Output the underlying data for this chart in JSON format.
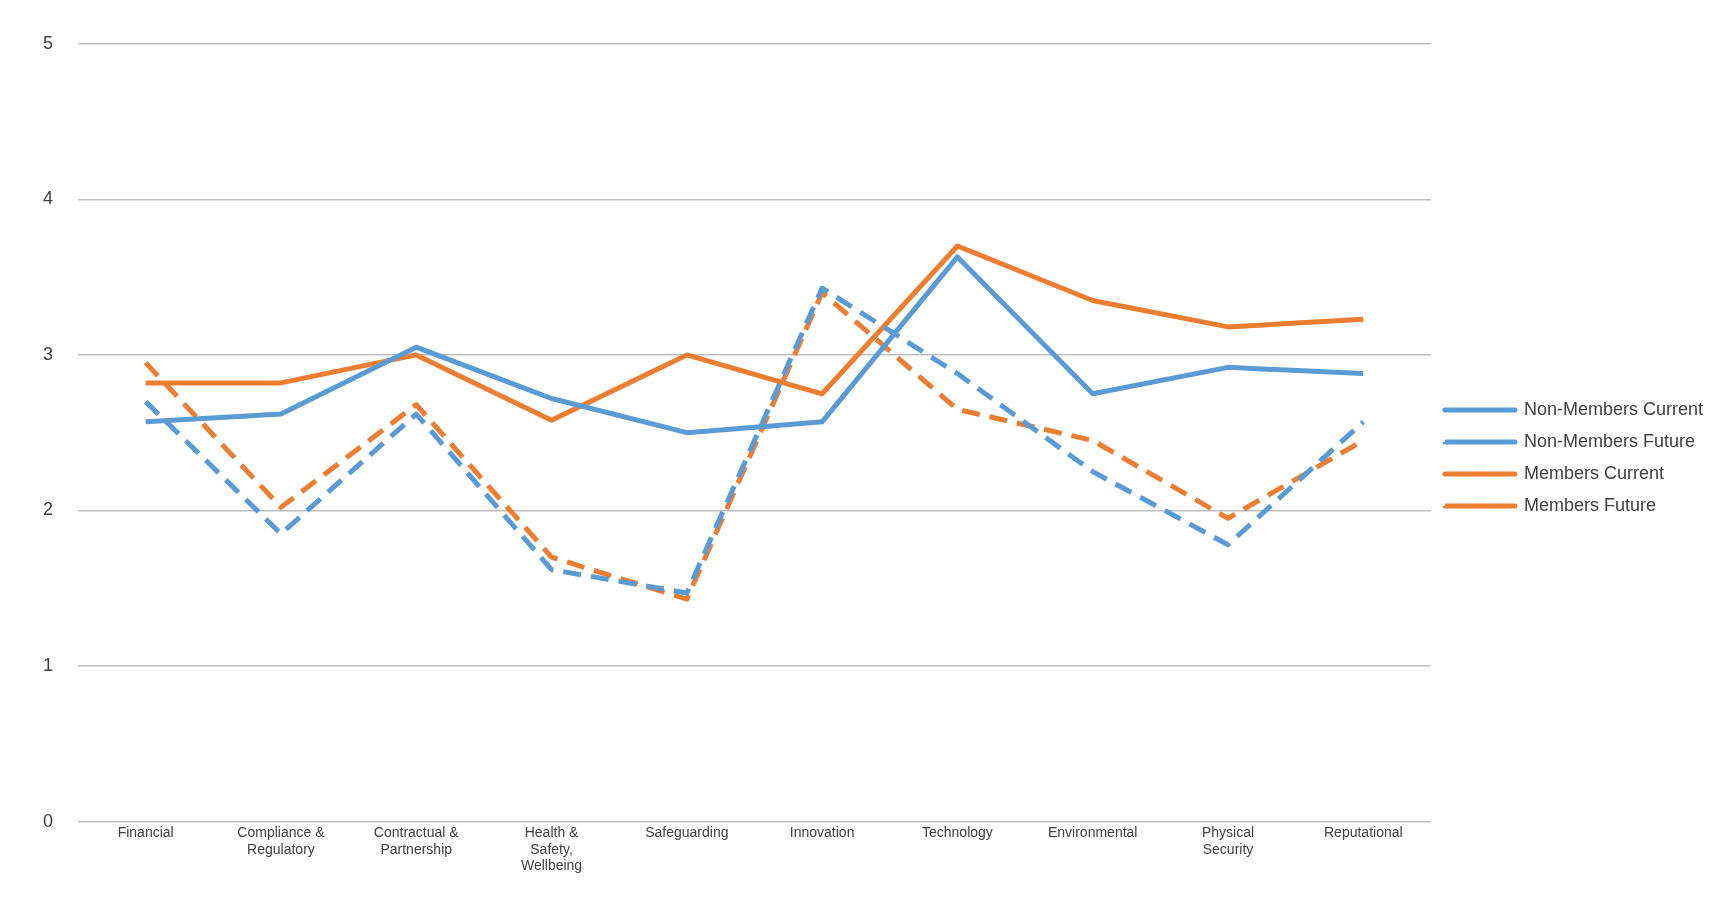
{
  "chart_data": {
    "type": "line",
    "categories": [
      "Financial",
      "Compliance & Regulatory",
      "Contractual & Partnership",
      "Health & Safety, Wellbeing",
      "Safeguarding",
      "Innovation",
      "Technology",
      "Environmental",
      "Physical Security",
      "Reputational"
    ],
    "series": [
      {
        "name": "Non-Members Current",
        "color": "#5b9bd5",
        "line_style": "solid",
        "values": [
          2.57,
          2.62,
          3.05,
          2.72,
          2.5,
          2.57,
          3.63,
          2.75,
          2.92,
          2.88
        ]
      },
      {
        "name": "Non-Members Future",
        "color": "#5b9bd5",
        "line_style": "dashed",
        "values": [
          2.7,
          1.85,
          2.62,
          1.62,
          1.47,
          3.43,
          2.88,
          2.25,
          1.78,
          2.57
        ]
      },
      {
        "name": "Members Current",
        "color": "#ed7d31",
        "line_style": "solid",
        "values": [
          2.82,
          2.82,
          3.0,
          2.58,
          3.0,
          2.75,
          3.7,
          3.35,
          3.18,
          3.23
        ]
      },
      {
        "name": "Members Future",
        "color": "#ed7d31",
        "line_style": "dashed",
        "values": [
          2.95,
          2.02,
          2.68,
          1.7,
          1.43,
          3.4,
          2.65,
          2.45,
          1.95,
          2.45
        ]
      }
    ],
    "ylim": [
      0,
      5
    ],
    "yticks": [
      0,
      1,
      2,
      3,
      4,
      5
    ],
    "grid": "y",
    "legend": "right",
    "marker": "none"
  }
}
